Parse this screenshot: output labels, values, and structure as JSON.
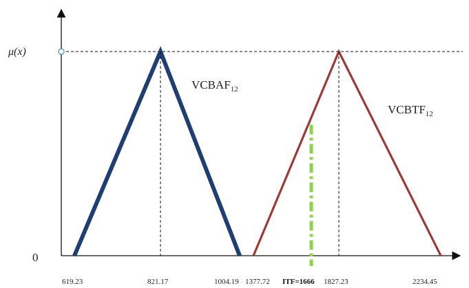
{
  "diagram": {
    "y_axis_label": "μ(x)",
    "origin_label": "0",
    "triangles": [
      {
        "name": "VCBAF",
        "subscript": "12",
        "color": "#1f3f73",
        "left": 619.23,
        "peak": 821.17,
        "right": 1004.19
      },
      {
        "name": "VCBTF",
        "subscript": "12",
        "color": "#9b3a36",
        "left": 1377.72,
        "peak": 1827.23,
        "right": 2234.45
      }
    ],
    "itf_marker": {
      "label": "ITF=1666",
      "value": 1666,
      "color": "#8fd14f"
    },
    "tick_labels": [
      "619.23",
      "821.17",
      "1004.19",
      "1377.72",
      "1827.23",
      "2234.45"
    ]
  }
}
